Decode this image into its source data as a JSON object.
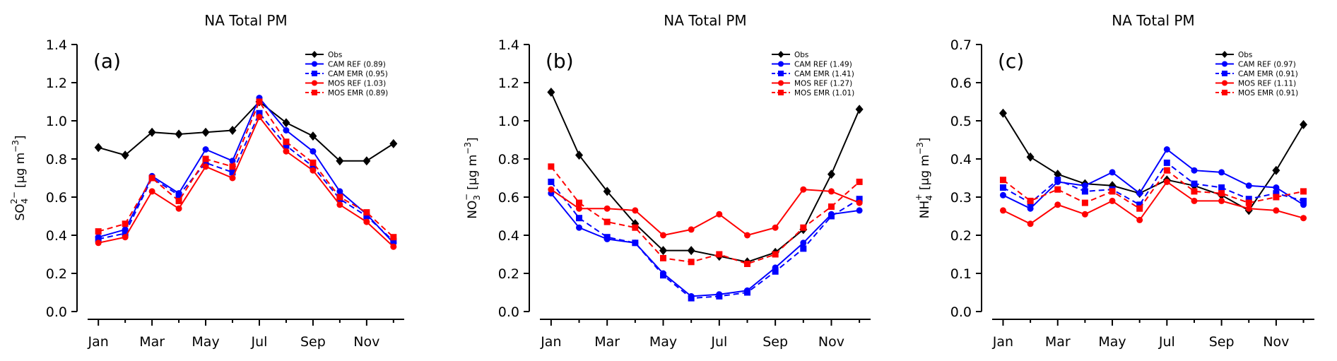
{
  "chart_data": [
    {
      "type": "line",
      "title": "NA Total PM",
      "panel_label": "(a)",
      "ylabel_parts": {
        "base": "SO",
        "sub": "4",
        "sup": "2−",
        "units": "[μg m",
        "units_sup": "−3",
        "close": "]"
      },
      "ylim": [
        0,
        1.4
      ],
      "yticks": [
        0.0,
        0.2,
        0.4,
        0.6,
        0.8,
        1.0,
        1.2,
        1.4
      ],
      "ytick_labels": [
        "0.0",
        "0.2",
        "0.4",
        "0.6",
        "0.8",
        "1.0",
        "1.2",
        "1.4"
      ],
      "x": [
        1,
        2,
        3,
        4,
        5,
        6,
        7,
        8,
        9,
        10,
        11,
        12
      ],
      "xtick_positions": [
        1,
        3,
        5,
        7,
        9,
        11
      ],
      "xtick_labels": [
        "Jan",
        "Mar",
        "May",
        "Jul",
        "Sep",
        "Nov"
      ],
      "legend_position": "top-right",
      "series": [
        {
          "name": "Obs",
          "legend": "Obs",
          "color": "#000000",
          "marker": "diamond",
          "dash": false,
          "values": [
            0.86,
            0.82,
            0.94,
            0.93,
            0.94,
            0.95,
            1.1,
            0.99,
            0.92,
            0.79,
            0.79,
            0.88
          ]
        },
        {
          "name": "CAM REF",
          "legend": "CAM REF (0.89)",
          "color": "#0000ff",
          "marker": "circle",
          "dash": false,
          "values": [
            0.39,
            0.43,
            0.71,
            0.62,
            0.85,
            0.79,
            1.12,
            0.95,
            0.84,
            0.63,
            0.51,
            0.36
          ]
        },
        {
          "name": "CAM EMR",
          "legend": "CAM EMR (0.95)",
          "color": "#0000ff",
          "marker": "square",
          "dash": true,
          "values": [
            0.38,
            0.41,
            0.7,
            0.61,
            0.78,
            0.73,
            1.04,
            0.87,
            0.76,
            0.59,
            0.5,
            0.37
          ]
        },
        {
          "name": "MOS REF",
          "legend": "MOS REF (1.03)",
          "color": "#ff0000",
          "marker": "circle",
          "dash": false,
          "values": [
            0.36,
            0.39,
            0.63,
            0.54,
            0.76,
            0.7,
            1.02,
            0.84,
            0.74,
            0.56,
            0.47,
            0.34
          ]
        },
        {
          "name": "MOS EMR",
          "legend": "MOS EMR (0.89)",
          "color": "#ff0000",
          "marker": "square",
          "dash": true,
          "values": [
            0.42,
            0.46,
            0.7,
            0.58,
            0.8,
            0.76,
            1.1,
            0.89,
            0.78,
            0.6,
            0.52,
            0.39
          ]
        }
      ]
    },
    {
      "type": "line",
      "title": "NA Total PM",
      "panel_label": "(b)",
      "ylabel_parts": {
        "base": "NO",
        "sub": "3",
        "sup": "−",
        "units": "[μg m",
        "units_sup": "−3",
        "close": "]"
      },
      "ylim": [
        0,
        1.4
      ],
      "yticks": [
        0.0,
        0.2,
        0.4,
        0.6,
        0.8,
        1.0,
        1.2,
        1.4
      ],
      "ytick_labels": [
        "0.0",
        "0.2",
        "0.4",
        "0.6",
        "0.8",
        "1.0",
        "1.2",
        "1.4"
      ],
      "x": [
        1,
        2,
        3,
        4,
        5,
        6,
        7,
        8,
        9,
        10,
        11,
        12
      ],
      "xtick_positions": [
        1,
        3,
        5,
        7,
        9,
        11
      ],
      "xtick_labels": [
        "Jan",
        "Mar",
        "May",
        "Jul",
        "Sep",
        "Nov"
      ],
      "legend_position": "top-right",
      "series": [
        {
          "name": "Obs",
          "legend": "Obs",
          "color": "#000000",
          "marker": "diamond",
          "dash": false,
          "values": [
            1.15,
            0.82,
            0.63,
            0.46,
            0.32,
            0.32,
            0.29,
            0.26,
            0.31,
            0.43,
            0.72,
            1.06
          ]
        },
        {
          "name": "CAM REF",
          "legend": "CAM REF (1.49)",
          "color": "#0000ff",
          "marker": "circle",
          "dash": false,
          "values": [
            0.62,
            0.44,
            0.38,
            0.36,
            0.2,
            0.08,
            0.09,
            0.11,
            0.23,
            0.36,
            0.51,
            0.53
          ]
        },
        {
          "name": "CAM EMR",
          "legend": "CAM EMR (1.41)",
          "color": "#0000ff",
          "marker": "square",
          "dash": true,
          "values": [
            0.68,
            0.49,
            0.39,
            0.36,
            0.19,
            0.07,
            0.08,
            0.1,
            0.21,
            0.33,
            0.5,
            0.59
          ]
        },
        {
          "name": "MOS REF",
          "legend": "MOS REF (1.27)",
          "color": "#ff0000",
          "marker": "circle",
          "dash": false,
          "values": [
            0.64,
            0.54,
            0.54,
            0.53,
            0.4,
            0.43,
            0.51,
            0.4,
            0.44,
            0.64,
            0.63,
            0.57
          ]
        },
        {
          "name": "MOS EMR",
          "legend": "MOS EMR (1.01)",
          "color": "#ff0000",
          "marker": "square",
          "dash": true,
          "values": [
            0.76,
            0.57,
            0.47,
            0.44,
            0.28,
            0.26,
            0.3,
            0.25,
            0.3,
            0.44,
            0.55,
            0.68
          ]
        }
      ]
    },
    {
      "type": "line",
      "title": "NA Total PM",
      "panel_label": "(c)",
      "ylabel_parts": {
        "base": "NH",
        "sub": "4",
        "sup": "+",
        "units": "[μg m",
        "units_sup": "−3",
        "close": "]"
      },
      "ylim": [
        0,
        0.7
      ],
      "yticks": [
        0.0,
        0.1,
        0.2,
        0.3,
        0.4,
        0.5,
        0.6,
        0.7
      ],
      "ytick_labels": [
        "0.0",
        "0.1",
        "0.2",
        "0.3",
        "0.4",
        "0.5",
        "0.6",
        "0.7"
      ],
      "x": [
        1,
        2,
        3,
        4,
        5,
        6,
        7,
        8,
        9,
        10,
        11,
        12
      ],
      "xtick_positions": [
        1,
        3,
        5,
        7,
        9,
        11
      ],
      "xtick_labels": [
        "Jan",
        "Mar",
        "May",
        "Jul",
        "Sep",
        "Nov"
      ],
      "legend_position": "top-right",
      "series": [
        {
          "name": "Obs",
          "legend": "Obs",
          "color": "#000000",
          "marker": "diamond",
          "dash": false,
          "values": [
            0.52,
            0.405,
            0.36,
            0.335,
            0.33,
            0.31,
            0.345,
            0.33,
            0.305,
            0.265,
            0.37,
            0.49
          ]
        },
        {
          "name": "CAM REF",
          "legend": "CAM REF (0.97)",
          "color": "#0000ff",
          "marker": "circle",
          "dash": false,
          "values": [
            0.305,
            0.27,
            0.34,
            0.33,
            0.365,
            0.31,
            0.425,
            0.37,
            0.365,
            0.33,
            0.325,
            0.28
          ]
        },
        {
          "name": "CAM EMR",
          "legend": "CAM EMR (0.91)",
          "color": "#0000ff",
          "marker": "square",
          "dash": true,
          "values": [
            0.325,
            0.285,
            0.345,
            0.315,
            0.32,
            0.28,
            0.39,
            0.335,
            0.325,
            0.295,
            0.31,
            0.29
          ]
        },
        {
          "name": "MOS REF",
          "legend": "MOS REF (1.11)",
          "color": "#ff0000",
          "marker": "circle",
          "dash": false,
          "values": [
            0.265,
            0.23,
            0.28,
            0.255,
            0.29,
            0.24,
            0.34,
            0.29,
            0.29,
            0.27,
            0.265,
            0.245
          ]
        },
        {
          "name": "MOS EMR",
          "legend": "MOS EMR (0.91)",
          "color": "#ff0000",
          "marker": "square",
          "dash": true,
          "values": [
            0.345,
            0.29,
            0.32,
            0.285,
            0.315,
            0.27,
            0.37,
            0.315,
            0.31,
            0.285,
            0.3,
            0.315
          ]
        }
      ]
    }
  ]
}
